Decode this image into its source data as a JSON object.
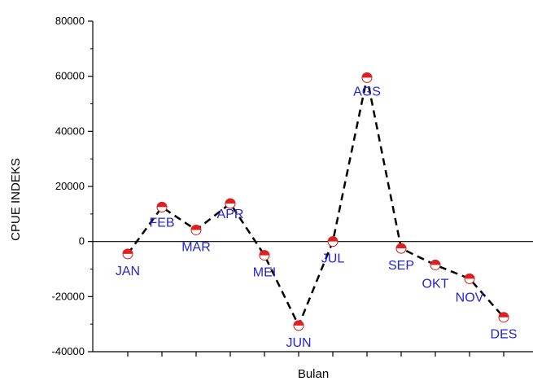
{
  "chart_data": {
    "type": "line",
    "title": "",
    "xlabel": "Bulan",
    "ylabel": "CPUE INDEKS",
    "categories": [
      "JAN",
      "FEB",
      "MAR",
      "APR",
      "MEI",
      "JUN",
      "JUL",
      "AGS",
      "SEP",
      "OKT",
      "NOV",
      "DES"
    ],
    "values": [
      -4500,
      12500,
      4200,
      13800,
      -5000,
      -30500,
      0,
      59500,
      -2500,
      -8500,
      -13500,
      -27500
    ],
    "ylim": [
      -40000,
      80000
    ],
    "yticks": [
      -40000,
      -20000,
      0,
      20000,
      40000,
      60000,
      80000
    ],
    "ytick_labels": [
      "-40000",
      "-20000",
      "0",
      "20000",
      "40000",
      "60000",
      "80000"
    ],
    "grid": false,
    "zero_line": true,
    "line_style": "dashed",
    "line_color": "#000000",
    "marker_color": "#e02020",
    "label_color": "#2424d6"
  }
}
